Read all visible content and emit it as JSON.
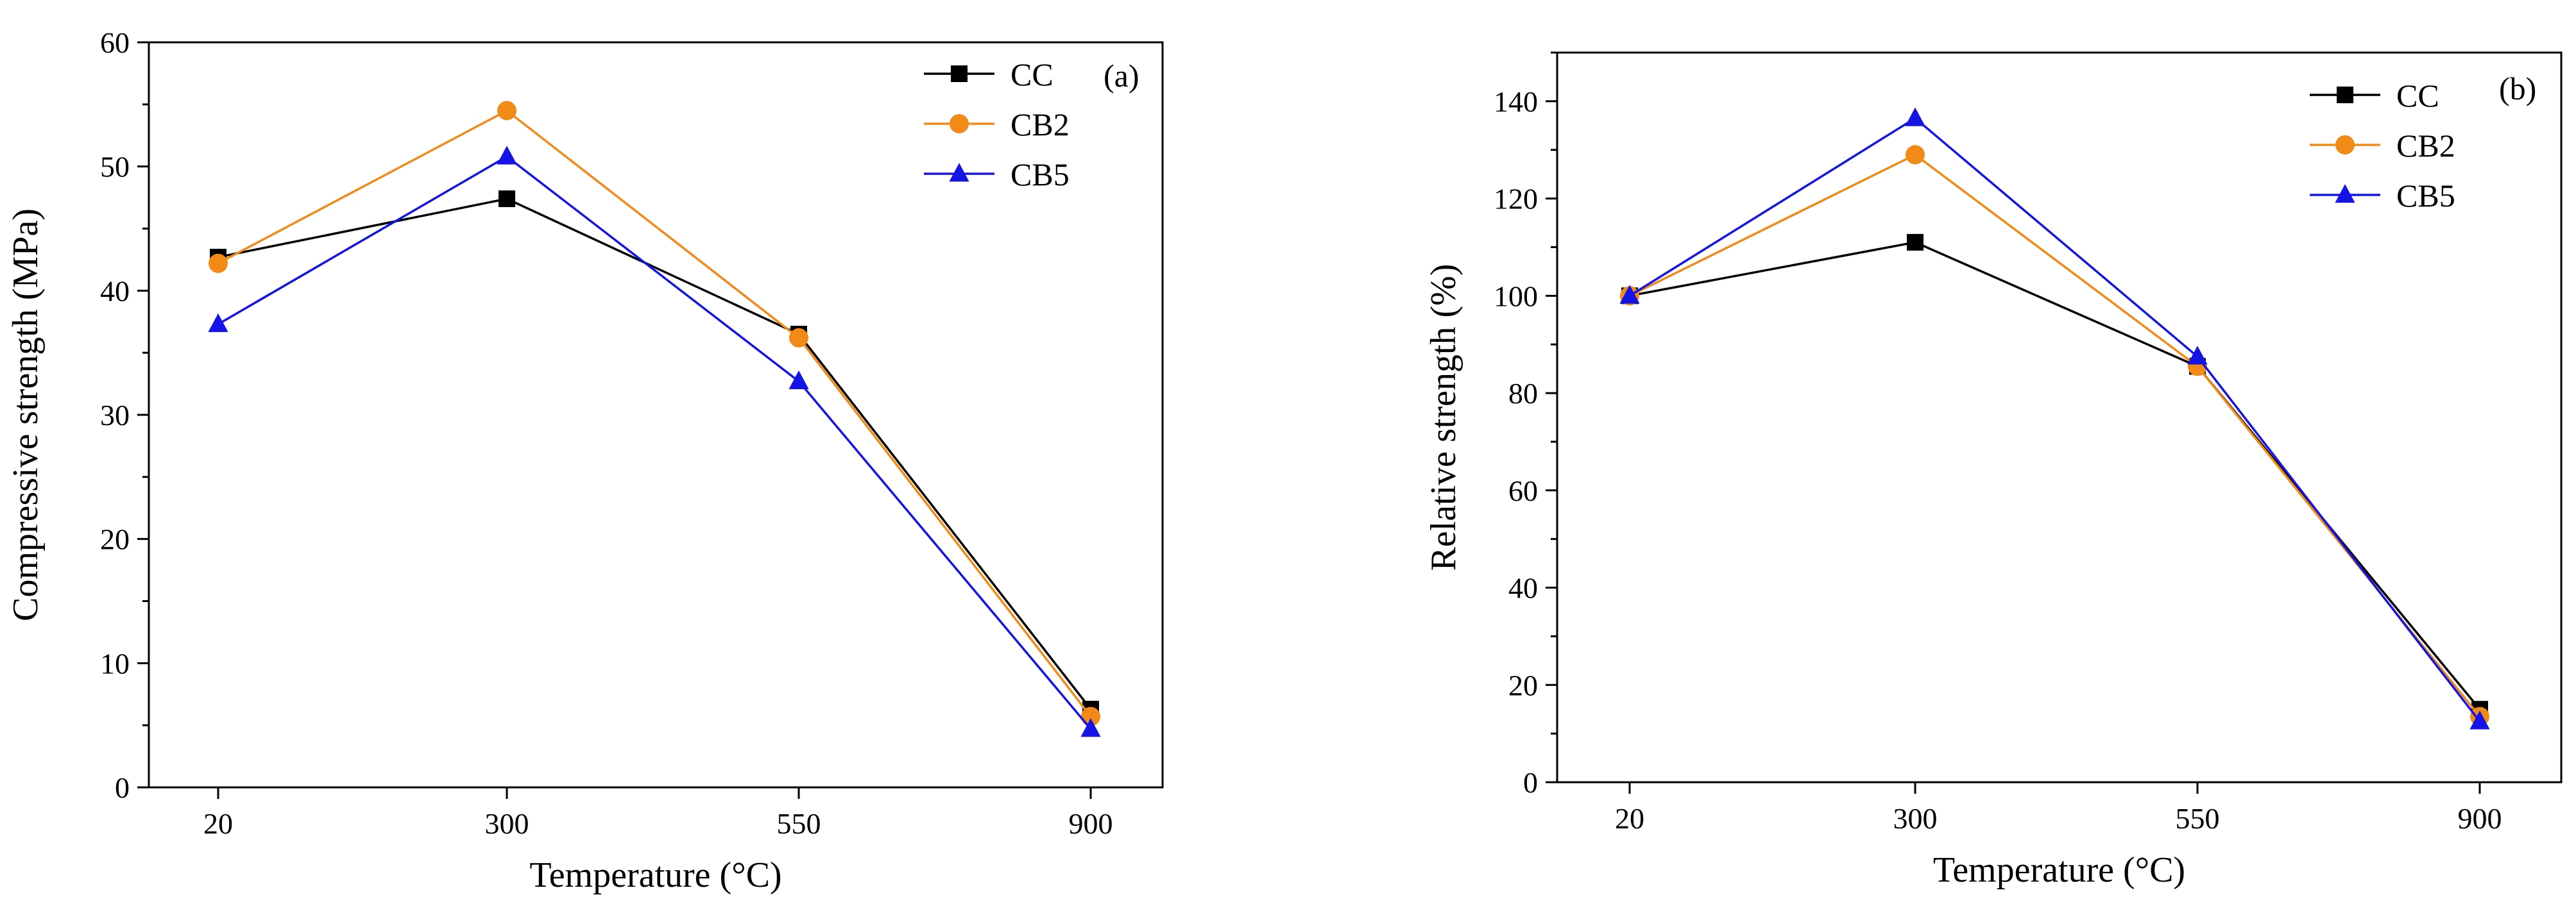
{
  "chart_data": [
    {
      "type": "line",
      "panel_label": "(a)",
      "categories": [
        "20",
        "300",
        "550",
        "900"
      ],
      "xlabel": "Temperature (°C)",
      "ylabel": "Compressive strength (MPa)",
      "ylim": [
        0,
        60
      ],
      "yticks": [
        0,
        10,
        20,
        30,
        40,
        50,
        60
      ],
      "legend_position": "top-right",
      "series": [
        {
          "name": "CC",
          "marker": "square",
          "color": "#000000",
          "values": [
            42.7,
            47.4,
            36.5,
            6.3
          ]
        },
        {
          "name": "CB2",
          "marker": "circle",
          "color": "#F28A18",
          "values": [
            42.2,
            54.5,
            36.2,
            5.7
          ]
        },
        {
          "name": "CB5",
          "marker": "triangle",
          "color": "#1414E6",
          "values": [
            37.3,
            50.8,
            32.7,
            4.7
          ]
        }
      ]
    },
    {
      "type": "line",
      "panel_label": "(b)",
      "categories": [
        "20",
        "300",
        "550",
        "900"
      ],
      "xlabel": "Temperature (°C)",
      "ylabel": "Relative strength (%)",
      "ylim": [
        0,
        150
      ],
      "yticks": [
        0,
        20,
        40,
        60,
        80,
        100,
        120,
        140
      ],
      "legend_position": "top-right",
      "series": [
        {
          "name": "CC",
          "marker": "square",
          "color": "#000000",
          "values": [
            100,
            111,
            85.5,
            15
          ]
        },
        {
          "name": "CB2",
          "marker": "circle",
          "color": "#F28A18",
          "values": [
            100,
            129,
            85.5,
            13.5
          ]
        },
        {
          "name": "CB5",
          "marker": "triangle",
          "color": "#1414E6",
          "values": [
            100,
            136.5,
            87.5,
            12.5
          ]
        }
      ]
    }
  ]
}
